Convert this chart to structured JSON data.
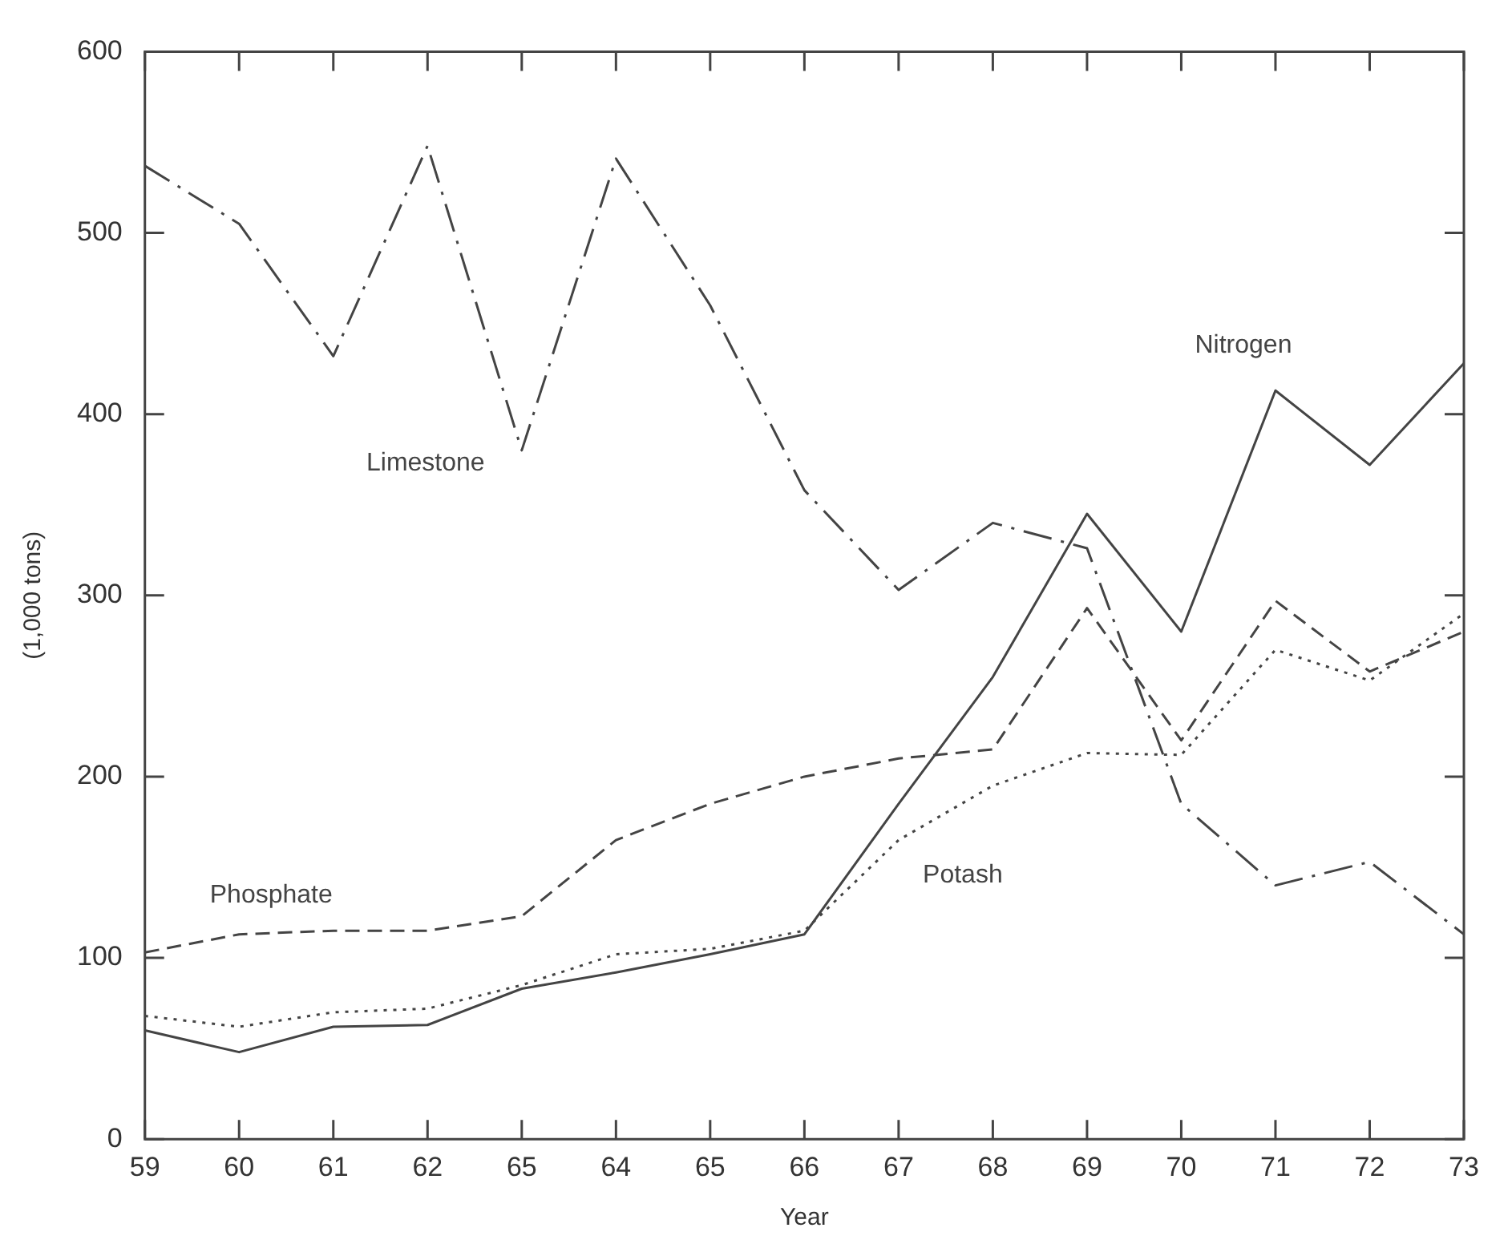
{
  "chart_data": {
    "type": "line",
    "xlabel": "Year",
    "ylabel": "(1,000 tons)",
    "categories": [
      "59",
      "60",
      "61",
      "62",
      "65",
      "64",
      "65",
      "66",
      "67",
      "68",
      "69",
      "70",
      "71",
      "72",
      "73"
    ],
    "ylim": [
      0,
      600
    ],
    "yticks": [
      0,
      100,
      200,
      300,
      400,
      500,
      600
    ],
    "grid": false,
    "legend": false,
    "marker": "none",
    "series": [
      {
        "name": "Limestone",
        "color": "#444444",
        "line_style": "dashed",
        "values": [
          537,
          505,
          432,
          548,
          380,
          541,
          460,
          358,
          303,
          340,
          326,
          185,
          140,
          153,
          113
        ]
      },
      {
        "name": "Nitrogen",
        "color": "#444444",
        "line_style": "solid",
        "values": [
          60,
          48,
          62,
          63,
          83,
          92,
          102,
          113,
          185,
          255,
          345,
          280,
          413,
          372,
          428
        ]
      },
      {
        "name": "Phosphate",
        "color": "#444444",
        "line_style": "dashed",
        "values": [
          103,
          113,
          115,
          115,
          123,
          165,
          185,
          200,
          210,
          215,
          293,
          220,
          297,
          258,
          280
        ]
      },
      {
        "name": "Potash",
        "color": "#444444",
        "line_style": "dotted",
        "values": [
          68,
          62,
          70,
          72,
          85,
          102,
          105,
          115,
          165,
          195,
          213,
          212,
          270,
          253,
          290
        ]
      }
    ]
  }
}
